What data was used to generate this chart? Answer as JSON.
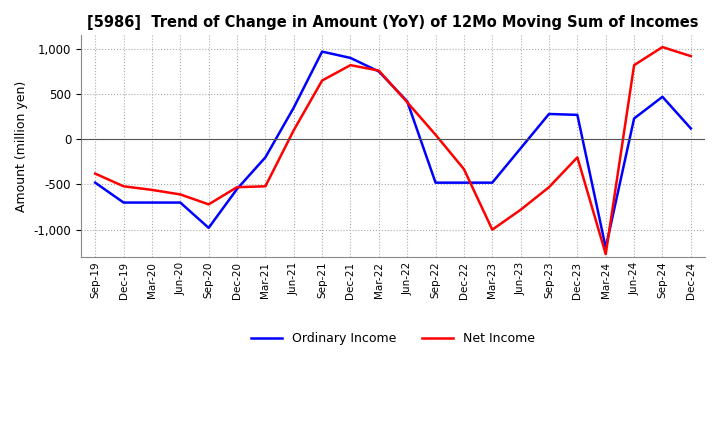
{
  "title": "[5986]  Trend of Change in Amount (YoY) of 12Mo Moving Sum of Incomes",
  "ylabel": "Amount (million yen)",
  "ylim": [
    -1300,
    1150
  ],
  "yticks": [
    -1000,
    -500,
    0,
    500,
    1000
  ],
  "background_color": "#ffffff",
  "grid_color": "#aaaaaa",
  "ordinary_income_color": "#0000ff",
  "net_income_color": "#ff0000",
  "x_labels": [
    "Sep-19",
    "Dec-19",
    "Mar-20",
    "Jun-20",
    "Sep-20",
    "Dec-20",
    "Mar-21",
    "Jun-21",
    "Sep-21",
    "Dec-21",
    "Mar-22",
    "Jun-22",
    "Sep-22",
    "Dec-22",
    "Mar-23",
    "Jun-23",
    "Sep-23",
    "Dec-23",
    "Mar-24",
    "Jun-24",
    "Sep-24",
    "Dec-24"
  ],
  "ordinary_income": [
    -480,
    -700,
    -700,
    -700,
    -980,
    -550,
    -200,
    350,
    970,
    900,
    750,
    420,
    -480,
    -480,
    -480,
    -100,
    280,
    270,
    -1200,
    230,
    470,
    120
  ],
  "net_income": [
    -380,
    -520,
    -560,
    -610,
    -720,
    -530,
    -520,
    100,
    650,
    820,
    760,
    410,
    50,
    -330,
    -1000,
    -780,
    -530,
    -200,
    -1270,
    820,
    1020,
    920
  ]
}
